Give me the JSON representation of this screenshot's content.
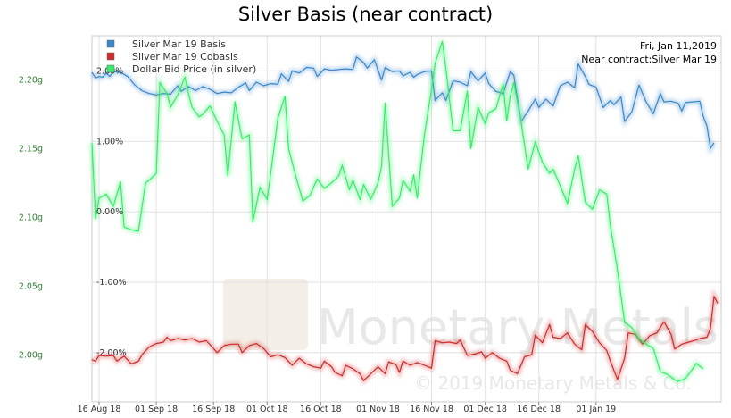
{
  "chart_data": {
    "type": "line",
    "title": "Silver Basis (near contract)",
    "info_lines": [
      "Fri, Jan 11,2019",
      "Near contract:Silver Mar 19"
    ],
    "watermark": {
      "brand": "Monetary Metals",
      "copyright": "© 2019 Monetary Metals & Co."
    },
    "x_ticks": [
      "16 Aug 18",
      "01 Sep 18",
      "16 Sep 18",
      "01 Oct 18",
      "16 Oct 18",
      "01 Nov 18",
      "16 Nov 18",
      "01 Dec 18",
      "16 Dec 18",
      "01 Jan 19"
    ],
    "y_right": {
      "ticks": [
        "2.00%",
        "1.00%",
        "0.00%",
        "-1.00%",
        "-2.00%"
      ],
      "range": [
        -2.7,
        2.5
      ]
    },
    "y_left": {
      "ticks": [
        "2.20g",
        "2.15g",
        "2.10g",
        "2.05g",
        "2.00g"
      ],
      "range": [
        1.966,
        2.232
      ]
    },
    "grid": true,
    "legend_position": "top-left",
    "series": [
      {
        "name": "Silver Mar 19 Basis",
        "color": "#3a87c9",
        "axis": "right",
        "values": [
          [
            0,
            1.98
          ],
          [
            1,
            1.9
          ],
          [
            2,
            1.92
          ],
          [
            3,
            1.91
          ],
          [
            4,
            1.97
          ],
          [
            5,
            1.92
          ],
          [
            6,
            1.99
          ],
          [
            8,
            1.98
          ],
          [
            10,
            1.92
          ],
          [
            12,
            1.8
          ],
          [
            14,
            1.72
          ],
          [
            16,
            1.68
          ],
          [
            18,
            1.66
          ],
          [
            20,
            1.68
          ],
          [
            22,
            1.67
          ],
          [
            24,
            1.79
          ],
          [
            25,
            1.71
          ],
          [
            27,
            1.78
          ],
          [
            29,
            1.72
          ],
          [
            31,
            1.78
          ],
          [
            33,
            1.74
          ],
          [
            35,
            1.68
          ],
          [
            37,
            1.7
          ],
          [
            39,
            1.69
          ],
          [
            41,
            1.77
          ],
          [
            43,
            1.83
          ],
          [
            44,
            1.72
          ],
          [
            46,
            1.84
          ],
          [
            48,
            1.79
          ],
          [
            50,
            1.82
          ],
          [
            52,
            1.81
          ],
          [
            53,
            1.96
          ],
          [
            55,
            1.85
          ],
          [
            56,
            2.0
          ],
          [
            58,
            1.97
          ],
          [
            60,
            2.05
          ],
          [
            62,
            2.04
          ],
          [
            63,
            1.92
          ],
          [
            65,
            2.03
          ],
          [
            67,
            2.01
          ],
          [
            69,
            2.02
          ],
          [
            71,
            2.03
          ],
          [
            73,
            2.02
          ],
          [
            74,
            2.2
          ],
          [
            76,
            2.12
          ],
          [
            77,
            2.04
          ],
          [
            79,
            2.16
          ],
          [
            80,
            2.01
          ],
          [
            81,
            1.87
          ],
          [
            82,
            2.05
          ],
          [
            84,
            1.99
          ],
          [
            86,
            2.0
          ],
          [
            87,
            1.93
          ],
          [
            89,
            1.98
          ],
          [
            90,
            1.91
          ],
          [
            91,
            1.95
          ],
          [
            93,
            1.99
          ],
          [
            95,
            2.0
          ],
          [
            96,
            1.58
          ],
          [
            98,
            1.69
          ],
          [
            99,
            1.58
          ],
          [
            101,
            1.86
          ],
          [
            103,
            1.84
          ],
          [
            105,
            1.79
          ],
          [
            106,
            1.99
          ],
          [
            108,
            1.86
          ],
          [
            110,
            1.97
          ],
          [
            111,
            1.82
          ],
          [
            113,
            1.71
          ],
          [
            115,
            1.68
          ],
          [
            117,
            1.99
          ],
          [
            118,
            1.94
          ],
          [
            120,
            1.28
          ],
          [
            122,
            1.43
          ],
          [
            124,
            1.6
          ],
          [
            125,
            1.48
          ],
          [
            127,
            1.6
          ],
          [
            129,
            1.5
          ],
          [
            131,
            1.79
          ],
          [
            133,
            1.84
          ],
          [
            135,
            1.76
          ],
          [
            136,
            2.1
          ],
          [
            138,
            1.92
          ],
          [
            139,
            1.81
          ],
          [
            141,
            1.77
          ],
          [
            143,
            1.48
          ],
          [
            145,
            1.58
          ],
          [
            146,
            1.52
          ],
          [
            148,
            1.63
          ],
          [
            149,
            1.28
          ],
          [
            151,
            1.42
          ],
          [
            153,
            1.8
          ],
          [
            155,
            1.56
          ],
          [
            157,
            1.39
          ],
          [
            159,
            1.68
          ],
          [
            160,
            1.56
          ],
          [
            162,
            1.57
          ],
          [
            164,
            1.54
          ],
          [
            165,
            1.43
          ],
          [
            166,
            1.55
          ],
          [
            168,
            1.56
          ],
          [
            170,
            1.57
          ],
          [
            171,
            1.35
          ],
          [
            172,
            1.22
          ],
          [
            173,
            0.9
          ],
          [
            174,
            0.98
          ]
        ]
      },
      {
        "name": "Silver Mar 19 Cobasis",
        "color": "#cc2b2b",
        "axis": "right",
        "values": [
          [
            0,
            -2.1
          ],
          [
            1,
            -2.12
          ],
          [
            2,
            -2.04
          ],
          [
            4,
            -2.05
          ],
          [
            6,
            -2.04
          ],
          [
            7,
            -2.12
          ],
          [
            9,
            -2.05
          ],
          [
            11,
            -2.16
          ],
          [
            13,
            -2.12
          ],
          [
            14,
            -2.03
          ],
          [
            16,
            -1.92
          ],
          [
            18,
            -1.87
          ],
          [
            20,
            -1.85
          ],
          [
            21,
            -1.78
          ],
          [
            22,
            -1.83
          ],
          [
            24,
            -1.8
          ],
          [
            26,
            -1.82
          ],
          [
            28,
            -1.8
          ],
          [
            30,
            -1.85
          ],
          [
            32,
            -1.83
          ],
          [
            34,
            -1.94
          ],
          [
            35,
            -2.0
          ],
          [
            37,
            -1.9
          ],
          [
            39,
            -1.88
          ],
          [
            41,
            -1.88
          ],
          [
            42,
            -2.0
          ],
          [
            44,
            -1.9
          ],
          [
            46,
            -1.87
          ],
          [
            48,
            -1.94
          ],
          [
            50,
            -2.06
          ],
          [
            52,
            -2.03
          ],
          [
            54,
            -2.07
          ],
          [
            56,
            -2.18
          ],
          [
            58,
            -2.08
          ],
          [
            60,
            -2.16
          ],
          [
            62,
            -2.2
          ],
          [
            64,
            -2.22
          ],
          [
            65,
            -2.12
          ],
          [
            67,
            -2.2
          ],
          [
            68,
            -2.28
          ],
          [
            70,
            -2.33
          ],
          [
            71,
            -2.18
          ],
          [
            73,
            -2.23
          ],
          [
            75,
            -2.3
          ],
          [
            76,
            -2.4
          ],
          [
            78,
            -2.3
          ],
          [
            80,
            -2.2
          ],
          [
            82,
            -2.3
          ],
          [
            83,
            -2.13
          ],
          [
            85,
            -2.17
          ],
          [
            86,
            -2.28
          ],
          [
            87,
            -2.12
          ],
          [
            89,
            -2.18
          ],
          [
            91,
            -2.14
          ],
          [
            93,
            -2.18
          ],
          [
            95,
            -2.22
          ],
          [
            96,
            -1.83
          ],
          [
            98,
            -1.86
          ],
          [
            100,
            -1.85
          ],
          [
            102,
            -1.87
          ],
          [
            103,
            -1.82
          ],
          [
            105,
            -2.04
          ],
          [
            107,
            -2.02
          ],
          [
            109,
            -1.99
          ],
          [
            110,
            -2.08
          ],
          [
            112,
            -2.0
          ],
          [
            114,
            -2.08
          ],
          [
            116,
            -2.12
          ],
          [
            117,
            -2.25
          ],
          [
            119,
            -2.3
          ],
          [
            121,
            -2.06
          ],
          [
            123,
            -2.03
          ],
          [
            124,
            -1.75
          ],
          [
            126,
            -1.86
          ],
          [
            128,
            -1.6
          ],
          [
            129,
            -1.78
          ],
          [
            131,
            -1.8
          ],
          [
            133,
            -1.72
          ],
          [
            135,
            -1.88
          ],
          [
            137,
            -1.96
          ],
          [
            138,
            -1.6
          ],
          [
            140,
            -1.7
          ],
          [
            142,
            -1.86
          ],
          [
            144,
            -1.97
          ],
          [
            145,
            -2.12
          ],
          [
            147,
            -2.38
          ],
          [
            149,
            -2.08
          ],
          [
            150,
            -1.72
          ],
          [
            152,
            -1.74
          ],
          [
            154,
            -1.88
          ],
          [
            156,
            -1.76
          ],
          [
            158,
            -1.72
          ],
          [
            160,
            -1.56
          ],
          [
            162,
            -1.74
          ],
          [
            163,
            -1.95
          ],
          [
            165,
            -1.88
          ],
          [
            167,
            -1.85
          ],
          [
            169,
            -1.82
          ],
          [
            170,
            -1.8
          ],
          [
            172,
            -1.78
          ],
          [
            173,
            -1.66
          ],
          [
            174,
            -1.2
          ],
          [
            175,
            -1.3
          ]
        ]
      },
      {
        "name": "Dollar Bid Price (in silver)",
        "color": "#33ee66",
        "axis": "left",
        "values": [
          [
            0,
            2.154
          ],
          [
            1,
            2.099
          ],
          [
            2,
            2.114
          ],
          [
            4,
            2.117
          ],
          [
            6,
            2.108
          ],
          [
            8,
            2.126
          ],
          [
            9,
            2.093
          ],
          [
            11,
            2.091
          ],
          [
            13,
            2.09
          ],
          [
            15,
            2.125
          ],
          [
            16,
            2.127
          ],
          [
            18,
            2.132
          ],
          [
            19,
            2.198
          ],
          [
            21,
            2.19
          ],
          [
            22,
            2.18
          ],
          [
            24,
            2.189
          ],
          [
            26,
            2.202
          ],
          [
            27,
            2.19
          ],
          [
            28,
            2.18
          ],
          [
            30,
            2.173
          ],
          [
            31,
            2.175
          ],
          [
            33,
            2.181
          ],
          [
            35,
            2.17
          ],
          [
            37,
            2.16
          ],
          [
            38,
            2.13
          ],
          [
            40,
            2.184
          ],
          [
            42,
            2.157
          ],
          [
            44,
            2.16
          ],
          [
            45,
            2.097
          ],
          [
            47,
            2.122
          ],
          [
            49,
            2.113
          ],
          [
            50,
            2.132
          ],
          [
            52,
            2.172
          ],
          [
            54,
            2.188
          ],
          [
            55,
            2.15
          ],
          [
            57,
            2.13
          ],
          [
            59,
            2.112
          ],
          [
            61,
            2.116
          ],
          [
            63,
            2.128
          ],
          [
            65,
            2.121
          ],
          [
            67,
            2.125
          ],
          [
            69,
            2.13
          ],
          [
            70,
            2.138
          ],
          [
            72,
            2.12
          ],
          [
            73,
            2.127
          ],
          [
            75,
            2.113
          ],
          [
            76,
            2.124
          ],
          [
            78,
            2.113
          ],
          [
            80,
            2.125
          ],
          [
            81,
            2.137
          ],
          [
            82,
            2.183
          ],
          [
            84,
            2.108
          ],
          [
            86,
            2.114
          ],
          [
            87,
            2.127
          ],
          [
            89,
            2.119
          ],
          [
            90,
            2.131
          ],
          [
            91,
            2.114
          ],
          [
            93,
            2.16
          ],
          [
            95,
            2.193
          ],
          [
            96,
            2.212
          ],
          [
            98,
            2.228
          ],
          [
            99,
            2.208
          ],
          [
            101,
            2.163
          ],
          [
            103,
            2.163
          ],
          [
            105,
            2.192
          ],
          [
            106,
            2.15
          ],
          [
            108,
            2.18
          ],
          [
            110,
            2.168
          ],
          [
            111,
            2.176
          ],
          [
            113,
            2.179
          ],
          [
            115,
            2.197
          ],
          [
            116,
            2.17
          ],
          [
            117,
            2.188
          ],
          [
            118,
            2.198
          ],
          [
            120,
            2.17
          ],
          [
            122,
            2.135
          ],
          [
            124,
            2.155
          ],
          [
            126,
            2.14
          ],
          [
            128,
            2.132
          ],
          [
            129,
            2.135
          ],
          [
            131,
            2.123
          ],
          [
            133,
            2.11
          ],
          [
            135,
            2.135
          ],
          [
            136,
            2.145
          ],
          [
            138,
            2.111
          ],
          [
            140,
            2.106
          ],
          [
            142,
            2.12
          ],
          [
            144,
            2.117
          ],
          [
            145,
            2.094
          ],
          [
            147,
            2.062
          ],
          [
            149,
            2.024
          ],
          [
            151,
            2.02
          ],
          [
            153,
            2.012
          ],
          [
            155,
            2.008
          ],
          [
            157,
            2.005
          ],
          [
            159,
            1.988
          ],
          [
            161,
            1.986
          ],
          [
            163,
            1.982
          ],
          [
            164,
            1.981
          ],
          [
            166,
            1.983
          ],
          [
            168,
            1.99
          ],
          [
            169,
            1.994
          ],
          [
            171,
            1.99
          ]
        ]
      }
    ]
  }
}
